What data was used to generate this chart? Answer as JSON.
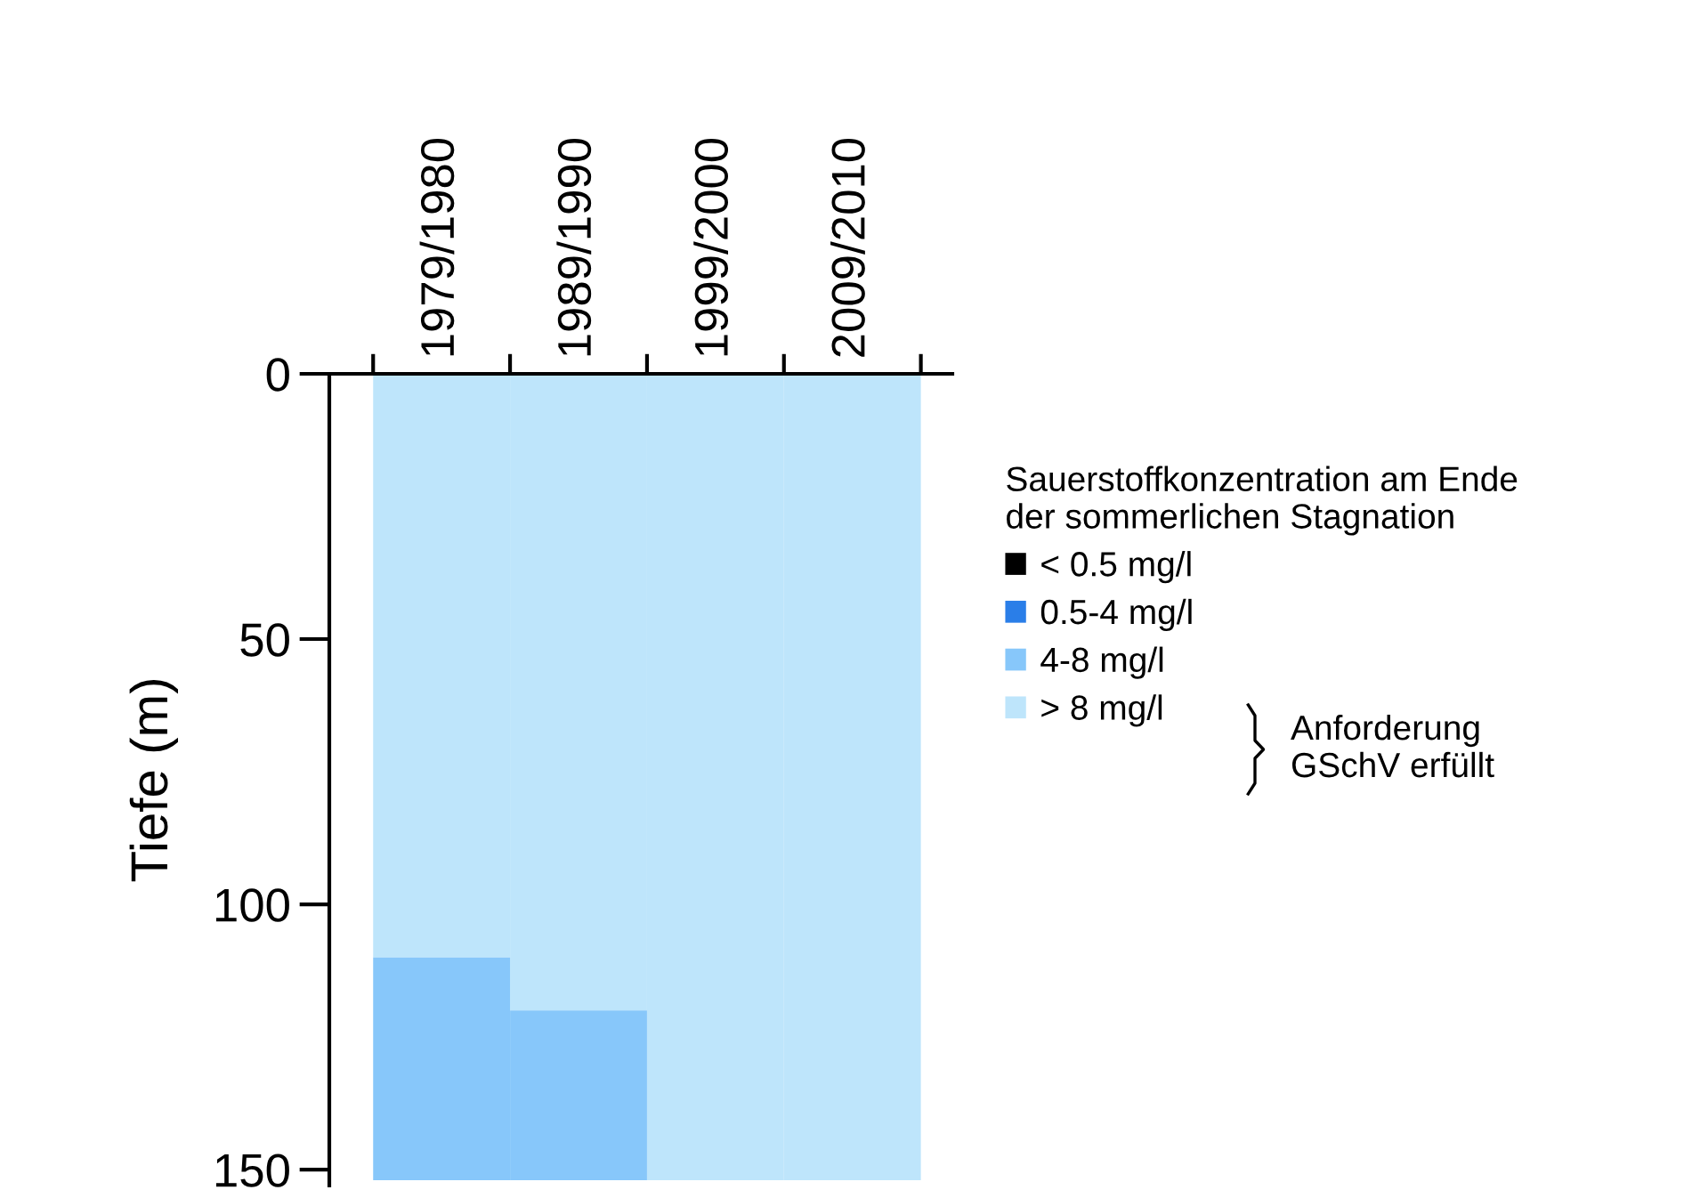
{
  "chart_data": {
    "type": "bar",
    "stacked": true,
    "ylabel": "Tiefe (m)",
    "categories": [
      "1979/1980",
      "1989/1990",
      "1999/2000",
      "2009/2010"
    ],
    "ylim": [
      153,
      0
    ],
    "yticks": [
      0,
      50,
      100,
      150
    ],
    "legend_title": "Sauerstoffkonzentration am Ende\nder sommerlichen Stagnation",
    "legend": "right",
    "grid": false,
    "annotations": [
      "Anforderung\nGSchV erfüllt"
    ],
    "series": [
      {
        "name": "> 8 mg/l",
        "color": "#bee5fb",
        "values": [
          110,
          120,
          152,
          152
        ]
      },
      {
        "name": "4-8 mg/l",
        "color": "#87c7fa",
        "values": [
          42,
          32,
          0,
          0
        ]
      },
      {
        "name": "0.5-4 mg/l",
        "color": "#2a7ee8",
        "values": [
          null,
          null,
          null,
          null
        ]
      },
      {
        "name": "< 0.5 mg/l",
        "color": "#000000",
        "values": [
          null,
          null,
          null,
          null
        ]
      }
    ]
  }
}
